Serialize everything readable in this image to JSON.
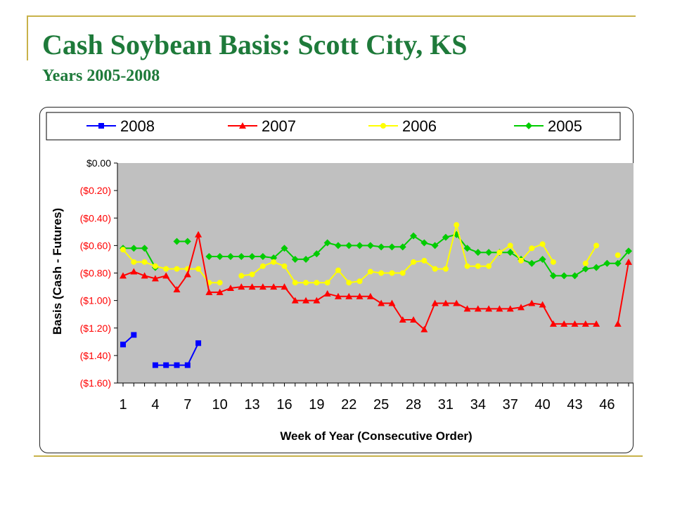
{
  "slide": {
    "title": "Cash Soybean Basis: Scott City, KS",
    "subtitle": "Years 2005-2008"
  },
  "chart_data": {
    "type": "line",
    "title": "",
    "xlabel": "Week of Year (Consecutive Order)",
    "ylabel": "Basis (Cash - Futures)",
    "x": [
      1,
      2,
      3,
      4,
      5,
      6,
      7,
      8,
      9,
      10,
      11,
      12,
      13,
      14,
      15,
      16,
      17,
      18,
      19,
      20,
      21,
      22,
      23,
      24,
      25,
      26,
      27,
      28,
      29,
      30,
      31,
      32,
      33,
      34,
      35,
      36,
      37,
      38,
      39,
      40,
      41,
      42,
      43,
      44,
      45,
      46,
      47,
      48
    ],
    "xticks": [
      1,
      4,
      7,
      10,
      13,
      16,
      19,
      22,
      25,
      28,
      31,
      34,
      37,
      40,
      43,
      46
    ],
    "xlim": [
      1,
      48
    ],
    "ylim": [
      -1.6,
      0
    ],
    "yticks": [
      0,
      -0.2,
      -0.4,
      -0.6,
      -0.8,
      -1.0,
      -1.2,
      -1.4,
      -1.6
    ],
    "ytick_labels": [
      "$0.00",
      "($0.20)",
      "($0.40)",
      "($0.60)",
      "($0.80)",
      "($1.00)",
      "($1.20)",
      "($1.40)",
      "($1.60)"
    ],
    "grid": false,
    "plot_background": "#c0c0c0",
    "legend_position": "top",
    "series": [
      {
        "name": "2008",
        "color": "#0000ff",
        "marker": "square",
        "values": [
          -1.32,
          -1.25,
          null,
          -1.47,
          -1.47,
          -1.47,
          -1.47,
          -1.31,
          null,
          null,
          null,
          null,
          null,
          null,
          null,
          null,
          null,
          null,
          null,
          null,
          null,
          null,
          null,
          null,
          null,
          null,
          null,
          null,
          null,
          null,
          null,
          null,
          null,
          null,
          null,
          null,
          null,
          null,
          null,
          null,
          null,
          null,
          null,
          null,
          null,
          null,
          null,
          null
        ]
      },
      {
        "name": "2007",
        "color": "#ff0000",
        "marker": "triangle",
        "values": [
          -0.82,
          -0.79,
          -0.82,
          -0.84,
          -0.82,
          -0.92,
          -0.81,
          -0.52,
          -0.94,
          -0.94,
          -0.91,
          -0.9,
          -0.9,
          -0.9,
          -0.9,
          -0.9,
          -1.0,
          -1.0,
          -1.0,
          -0.95,
          -0.97,
          -0.97,
          -0.97,
          -0.97,
          -1.02,
          -1.02,
          -1.14,
          -1.14,
          -1.21,
          -1.02,
          -1.02,
          -1.02,
          -1.06,
          -1.06,
          -1.06,
          -1.06,
          -1.06,
          -1.05,
          -1.02,
          -1.03,
          -1.17,
          -1.17,
          -1.17,
          -1.17,
          -1.17,
          null,
          -1.17,
          -0.72
        ]
      },
      {
        "name": "2006",
        "color": "#ffff00",
        "marker": "circle",
        "values": [
          -0.63,
          -0.72,
          -0.72,
          -0.75,
          -0.77,
          -0.77,
          -0.77,
          -0.77,
          -0.87,
          -0.87,
          null,
          -0.82,
          -0.81,
          -0.75,
          -0.72,
          -0.75,
          -0.87,
          -0.87,
          -0.87,
          -0.87,
          -0.78,
          -0.87,
          -0.86,
          -0.79,
          -0.8,
          -0.8,
          -0.8,
          -0.72,
          -0.71,
          -0.77,
          -0.77,
          -0.45,
          -0.75,
          -0.75,
          -0.75,
          -0.65,
          -0.6,
          -0.71,
          -0.62,
          -0.59,
          -0.72,
          null,
          null,
          -0.73,
          -0.6,
          null,
          -0.67,
          null
        ]
      },
      {
        "name": "2005",
        "color": "#00cc00",
        "marker": "diamond",
        "values": [
          -0.62,
          -0.62,
          -0.62,
          -0.76,
          null,
          -0.57,
          -0.57,
          null,
          -0.68,
          -0.68,
          -0.68,
          -0.68,
          -0.68,
          -0.68,
          -0.69,
          -0.62,
          -0.7,
          -0.7,
          -0.66,
          -0.58,
          -0.6,
          -0.6,
          -0.6,
          -0.6,
          -0.61,
          -0.61,
          -0.61,
          -0.53,
          -0.58,
          -0.6,
          -0.54,
          -0.52,
          -0.62,
          -0.65,
          -0.65,
          -0.65,
          -0.65,
          -0.7,
          -0.73,
          -0.7,
          -0.82,
          -0.82,
          -0.82,
          -0.77,
          -0.76,
          -0.73,
          -0.73,
          -0.64
        ]
      }
    ]
  }
}
